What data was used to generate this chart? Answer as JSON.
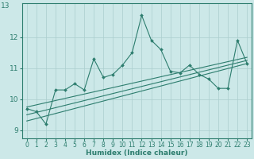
{
  "xlabel": "Humidex (Indice chaleur)",
  "x": [
    0,
    1,
    2,
    3,
    4,
    5,
    6,
    7,
    8,
    9,
    10,
    11,
    12,
    13,
    14,
    15,
    16,
    17,
    18,
    19,
    20,
    21,
    22,
    23
  ],
  "y_main": [
    9.7,
    9.6,
    9.2,
    10.3,
    10.3,
    10.5,
    10.3,
    11.3,
    10.7,
    10.8,
    11.1,
    11.5,
    12.7,
    11.9,
    11.6,
    10.9,
    10.85,
    11.1,
    10.8,
    10.65,
    10.35,
    10.35,
    11.9,
    11.15
  ],
  "line1_start": 9.3,
  "line1_end": 11.15,
  "line2_start": 9.5,
  "line2_end": 11.25,
  "line3_start": 9.75,
  "line3_end": 11.35,
  "line_color": "#2d7d6e",
  "bg_color": "#cce8e8",
  "grid_color": "#aacece",
  "ylim": [
    8.75,
    13.1
  ],
  "xlim": [
    -0.5,
    23.5
  ],
  "yticks": [
    9,
    10,
    11,
    12
  ],
  "ytick_top_label": "13",
  "xticks": [
    0,
    1,
    2,
    3,
    4,
    5,
    6,
    7,
    8,
    9,
    10,
    11,
    12,
    13,
    14,
    15,
    16,
    17,
    18,
    19,
    20,
    21,
    22,
    23
  ]
}
